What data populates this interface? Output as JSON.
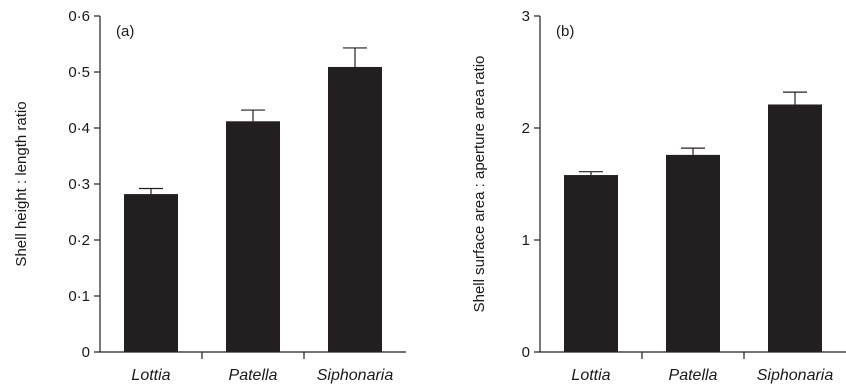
{
  "colors": {
    "bar": "#231f20",
    "axis": "#231f20",
    "background": "#ffffff"
  },
  "chart_data": [
    {
      "type": "bar",
      "panel_label": "(a)",
      "categories": [
        "Lottia",
        "Patella",
        "Siphonaria"
      ],
      "values": [
        0.282,
        0.412,
        0.509
      ],
      "errors": [
        0.01,
        0.02,
        0.034
      ],
      "ylabel": "Shell height : length ratio",
      "xlabel": "",
      "ylim": [
        0,
        0.6
      ],
      "yticks": [
        0,
        0.1,
        0.2,
        0.3,
        0.4,
        0.5,
        0.6
      ],
      "ytick_labels": [
        "0",
        "0·1",
        "0·2",
        "0·3",
        "0·4",
        "0·5",
        "0·6"
      ],
      "grid": false
    },
    {
      "type": "bar",
      "panel_label": "(b)",
      "categories": [
        "Lottia",
        "Patella",
        "Siphonaria"
      ],
      "values": [
        1.58,
        1.76,
        2.21
      ],
      "errors": [
        0.03,
        0.06,
        0.11
      ],
      "ylabel": "Shell surface area : aperture area ratio",
      "xlabel": "",
      "ylim": [
        0,
        3
      ],
      "yticks": [
        0,
        1,
        2,
        3
      ],
      "ytick_labels": [
        "0",
        "1",
        "2",
        "3"
      ],
      "grid": false
    }
  ]
}
